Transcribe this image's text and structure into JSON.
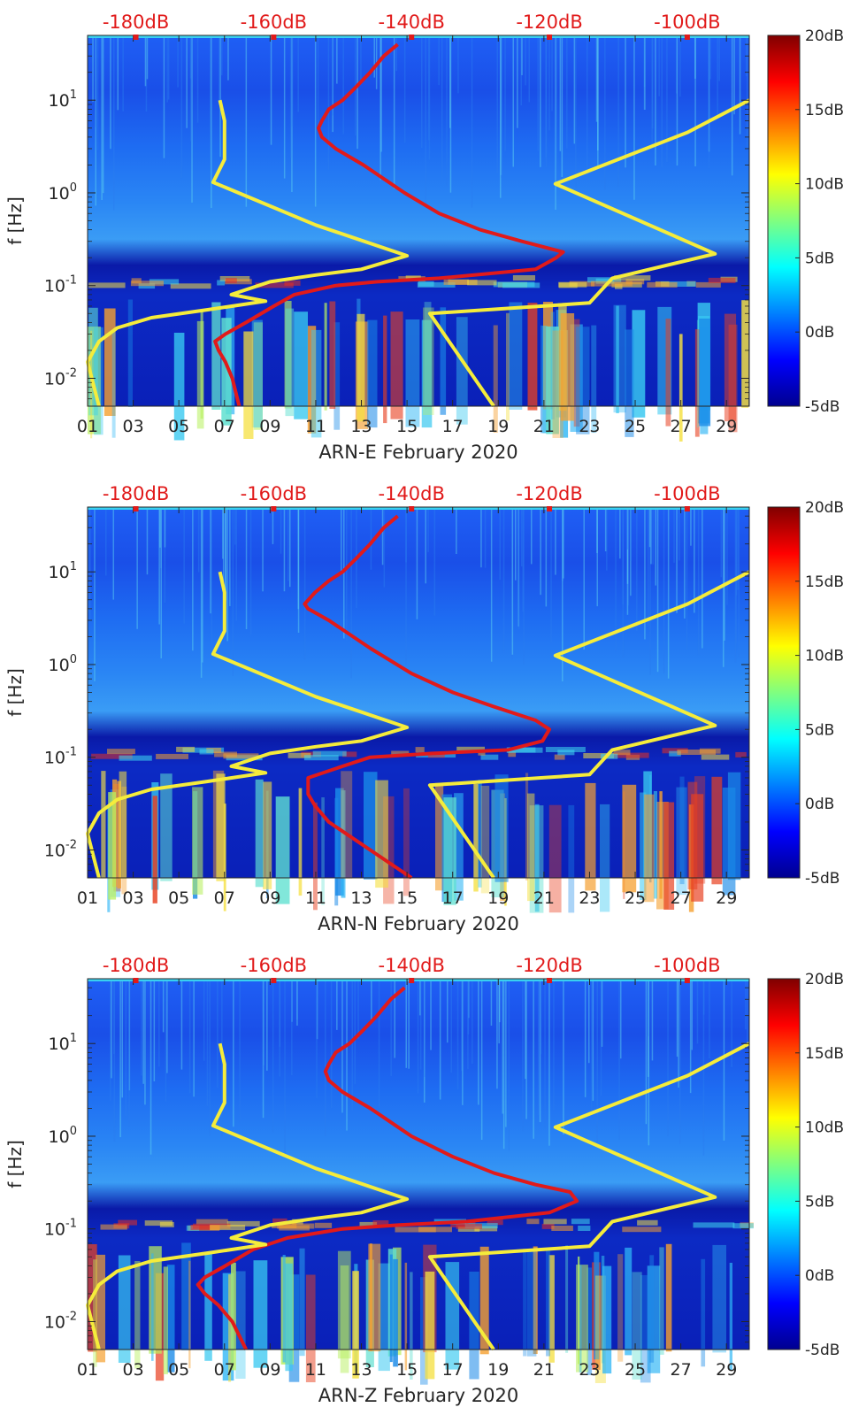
{
  "chart_data": [
    {
      "type": "heatmap",
      "xlabel": "ARN-E February 2020",
      "ylabel": "f [Hz]",
      "x_ticks": [
        "01",
        "03",
        "05",
        "07",
        "09",
        "11",
        "13",
        "15",
        "17",
        "19",
        "21",
        "23",
        "25",
        "27",
        "29"
      ],
      "x_range_days": [
        1,
        30
      ],
      "y_ticks": [
        "10^-2",
        "10^-1",
        "10^0",
        "10^1"
      ],
      "y_range_hz": [
        0.005,
        50
      ],
      "y_scale": "log",
      "top_axis": {
        "ticks": [
          "-180dB",
          "-160dB",
          "-140dB",
          "-120dB",
          "-100dB"
        ],
        "range_db": [
          -187,
          -91
        ]
      },
      "colorbar": {
        "ticks": [
          "20dB",
          "15dB",
          "10dB",
          "5dB",
          "0dB",
          "-5dB"
        ],
        "range_db": [
          -5,
          20
        ],
        "colormap": "jet"
      },
      "series": [
        {
          "color": "#e11a1a",
          "axis": "top-dB",
          "points_db_hz": [
            [
              -165,
              0.005
            ],
            [
              -166,
              0.01
            ],
            [
              -167,
              0.015
            ],
            [
              -168,
              0.02
            ],
            [
              -168.5,
              0.025
            ],
            [
              -167,
              0.03
            ],
            [
              -164,
              0.04
            ],
            [
              -160,
              0.06
            ],
            [
              -157,
              0.08
            ],
            [
              -151,
              0.1
            ],
            [
              -145,
              0.11
            ],
            [
              -136,
              0.12
            ],
            [
              -122,
              0.15
            ],
            [
              -119,
              0.2
            ],
            [
              -118,
              0.23
            ],
            [
              -124,
              0.3
            ],
            [
              -130,
              0.4
            ],
            [
              -136,
              0.6
            ],
            [
              -141,
              1
            ],
            [
              -147,
              2
            ],
            [
              -151,
              3
            ],
            [
              -153,
              4
            ],
            [
              -153.5,
              5
            ],
            [
              -153,
              6
            ],
            [
              -152,
              8
            ],
            [
              -150,
              10
            ],
            [
              -148,
              14
            ],
            [
              -146,
              20
            ],
            [
              -144,
              30
            ],
            [
              -142,
              40
            ]
          ]
        },
        {
          "color": "#f5ec3b",
          "axis": "date",
          "points_day_hz": [
            [
              1.5,
              0.005
            ],
            [
              1.0,
              0.015
            ],
            [
              1.5,
              0.025
            ],
            [
              2.3,
              0.035
            ],
            [
              3.8,
              0.045
            ],
            [
              6.3,
              0.055
            ],
            [
              8.8,
              0.068
            ],
            [
              7.3,
              0.08
            ],
            [
              9.0,
              0.11
            ],
            [
              11.0,
              0.13
            ],
            [
              13.0,
              0.15
            ],
            [
              15.0,
              0.21
            ],
            [
              11.0,
              0.45
            ],
            [
              6.5,
              1.3
            ],
            [
              7.0,
              2.3
            ],
            [
              7.0,
              6.0
            ],
            [
              6.8,
              10
            ]
          ]
        },
        {
          "color": "#f5ec3b",
          "axis": "date",
          "points_day_hz": [
            [
              18.8,
              0.005
            ],
            [
              16.0,
              0.05
            ],
            [
              23.0,
              0.065
            ],
            [
              24.0,
              0.12
            ],
            [
              28.5,
              0.22
            ],
            [
              21.5,
              1.25
            ],
            [
              27.3,
              4.5
            ],
            [
              30.0,
              10
            ]
          ]
        }
      ]
    },
    {
      "type": "heatmap",
      "xlabel": "ARN-N February 2020",
      "ylabel": "f [Hz]",
      "x_ticks": [
        "01",
        "03",
        "05",
        "07",
        "09",
        "11",
        "13",
        "15",
        "17",
        "19",
        "21",
        "23",
        "25",
        "27",
        "29"
      ],
      "x_range_days": [
        1,
        30
      ],
      "y_ticks": [
        "10^-2",
        "10^-1",
        "10^0",
        "10^1"
      ],
      "y_range_hz": [
        0.005,
        50
      ],
      "y_scale": "log",
      "top_axis": {
        "ticks": [
          "-180dB",
          "-160dB",
          "-140dB",
          "-120dB",
          "-100dB"
        ],
        "range_db": [
          -187,
          -91
        ]
      },
      "colorbar": {
        "ticks": [
          "20dB",
          "15dB",
          "10dB",
          "5dB",
          "0dB",
          "-5dB"
        ],
        "range_db": [
          -5,
          20
        ],
        "colormap": "jet"
      },
      "series": [
        {
          "color": "#e11a1a",
          "axis": "top-dB",
          "points_db_hz": [
            [
              -140,
              0.005
            ],
            [
              -146,
              0.01
            ],
            [
              -152,
              0.02
            ],
            [
              -154,
              0.03
            ],
            [
              -155,
              0.04
            ],
            [
              -155,
              0.06
            ],
            [
              -150,
              0.08
            ],
            [
              -146,
              0.1
            ],
            [
              -137,
              0.11
            ],
            [
              -126,
              0.12
            ],
            [
              -121,
              0.15
            ],
            [
              -120,
              0.2
            ],
            [
              -122,
              0.25
            ],
            [
              -128,
              0.35
            ],
            [
              -134,
              0.5
            ],
            [
              -140,
              0.8
            ],
            [
              -146,
              1.5
            ],
            [
              -152,
              3
            ],
            [
              -155,
              4
            ],
            [
              -155.5,
              4.5
            ],
            [
              -154,
              6
            ],
            [
              -152,
              8
            ],
            [
              -150,
              10
            ],
            [
              -148,
              14
            ],
            [
              -146,
              20
            ],
            [
              -144,
              30
            ],
            [
              -142,
              40
            ]
          ]
        },
        {
          "color": "#f5ec3b",
          "axis": "date",
          "points_day_hz": [
            [
              1.5,
              0.005
            ],
            [
              1.0,
              0.015
            ],
            [
              1.5,
              0.025
            ],
            [
              2.3,
              0.035
            ],
            [
              3.8,
              0.045
            ],
            [
              6.3,
              0.055
            ],
            [
              8.8,
              0.068
            ],
            [
              7.3,
              0.08
            ],
            [
              9.0,
              0.11
            ],
            [
              11.0,
              0.13
            ],
            [
              13.0,
              0.15
            ],
            [
              15.0,
              0.21
            ],
            [
              11.0,
              0.45
            ],
            [
              6.5,
              1.3
            ],
            [
              7.0,
              2.3
            ],
            [
              7.0,
              6.0
            ],
            [
              6.8,
              10
            ]
          ]
        },
        {
          "color": "#f5ec3b",
          "axis": "date",
          "points_day_hz": [
            [
              18.8,
              0.005
            ],
            [
              16.0,
              0.05
            ],
            [
              23.0,
              0.065
            ],
            [
              24.0,
              0.12
            ],
            [
              28.5,
              0.22
            ],
            [
              21.5,
              1.25
            ],
            [
              27.3,
              4.5
            ],
            [
              30.0,
              10
            ]
          ]
        }
      ]
    },
    {
      "type": "heatmap",
      "xlabel": "ARN-Z February 2020",
      "ylabel": "f [Hz]",
      "x_ticks": [
        "01",
        "03",
        "05",
        "07",
        "09",
        "11",
        "13",
        "15",
        "17",
        "19",
        "21",
        "23",
        "25",
        "27",
        "29"
      ],
      "x_range_days": [
        1,
        30
      ],
      "y_ticks": [
        "10^-2",
        "10^-1",
        "10^0",
        "10^1"
      ],
      "y_range_hz": [
        0.005,
        50
      ],
      "y_scale": "log",
      "top_axis": {
        "ticks": [
          "-180dB",
          "-160dB",
          "-140dB",
          "-120dB",
          "-100dB"
        ],
        "range_db": [
          -187,
          -91
        ]
      },
      "colorbar": {
        "ticks": [
          "20dB",
          "15dB",
          "10dB",
          "5dB",
          "0dB",
          "-5dB"
        ],
        "range_db": [
          -5,
          20
        ],
        "colormap": "jet"
      },
      "series": [
        {
          "color": "#e11a1a",
          "axis": "top-dB",
          "points_db_hz": [
            [
              -164,
              0.005
            ],
            [
              -166,
              0.01
            ],
            [
              -168,
              0.015
            ],
            [
              -170,
              0.02
            ],
            [
              -171,
              0.025
            ],
            [
              -170,
              0.03
            ],
            [
              -167,
              0.04
            ],
            [
              -163,
              0.06
            ],
            [
              -158,
              0.08
            ],
            [
              -150,
              0.1
            ],
            [
              -142,
              0.11
            ],
            [
              -132,
              0.12
            ],
            [
              -120,
              0.15
            ],
            [
              -116,
              0.2
            ],
            [
              -117,
              0.25
            ],
            [
              -122,
              0.3
            ],
            [
              -128,
              0.4
            ],
            [
              -134,
              0.6
            ],
            [
              -140,
              1
            ],
            [
              -146,
              2
            ],
            [
              -150,
              3
            ],
            [
              -152,
              4
            ],
            [
              -152.5,
              5
            ],
            [
              -152,
              6
            ],
            [
              -151,
              8
            ],
            [
              -149,
              10
            ],
            [
              -147,
              14
            ],
            [
              -145,
              20
            ],
            [
              -143,
              30
            ],
            [
              -141,
              40
            ]
          ]
        },
        {
          "color": "#f5ec3b",
          "axis": "date",
          "points_day_hz": [
            [
              1.5,
              0.005
            ],
            [
              1.0,
              0.015
            ],
            [
              1.5,
              0.025
            ],
            [
              2.3,
              0.035
            ],
            [
              3.8,
              0.045
            ],
            [
              6.3,
              0.055
            ],
            [
              8.8,
              0.068
            ],
            [
              7.3,
              0.08
            ],
            [
              9.0,
              0.11
            ],
            [
              11.0,
              0.13
            ],
            [
              13.0,
              0.15
            ],
            [
              15.0,
              0.21
            ],
            [
              11.0,
              0.45
            ],
            [
              6.5,
              1.3
            ],
            [
              7.0,
              2.3
            ],
            [
              7.0,
              6.0
            ],
            [
              6.8,
              10
            ]
          ]
        },
        {
          "color": "#f5ec3b",
          "axis": "date",
          "points_day_hz": [
            [
              18.8,
              0.005
            ],
            [
              16.0,
              0.05
            ],
            [
              23.0,
              0.065
            ],
            [
              24.0,
              0.12
            ],
            [
              28.5,
              0.22
            ],
            [
              21.5,
              1.25
            ],
            [
              27.3,
              4.5
            ],
            [
              30.0,
              10
            ]
          ]
        }
      ]
    }
  ]
}
